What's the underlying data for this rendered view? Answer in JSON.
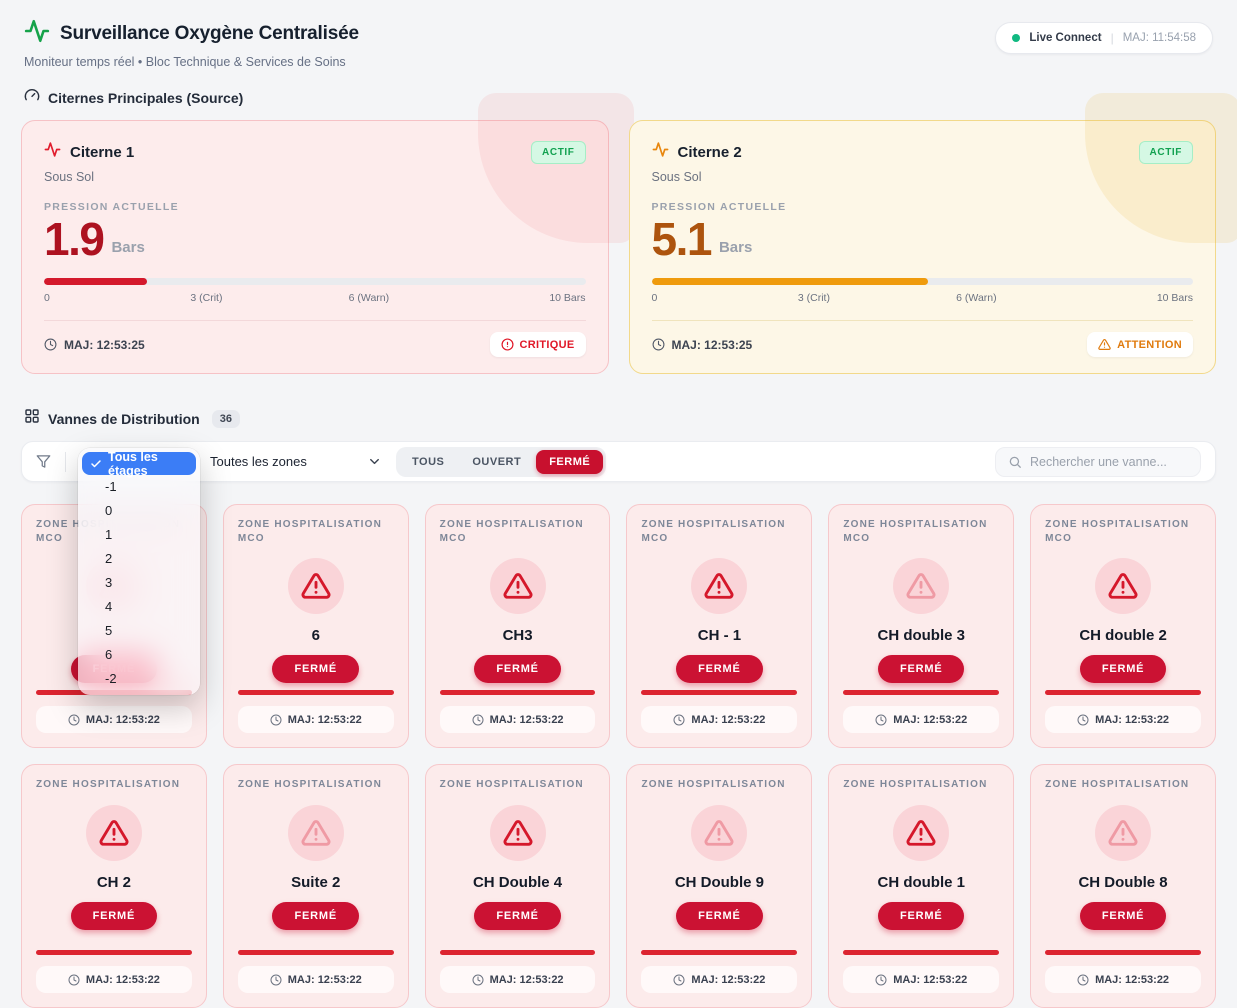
{
  "colors": {
    "critical_red": "#d4192c",
    "closed_red": "#cb1233",
    "warn_orange": "#ef9b0d",
    "live_green": "#10b981",
    "select_blue": "#3b7df6"
  },
  "header": {
    "title": "Surveillance Oxygène Centralisée",
    "subtitle": "Moniteur temps réel • Bloc Technique & Services de Soins",
    "live_label": "Live Connect",
    "maj": "MAJ: 11:54:58"
  },
  "tanks_section": {
    "title": "Citernes Principales (Source)"
  },
  "pressure_scale": {
    "zero": "0",
    "crit": "3 (Crit)",
    "warn": "6 (Warn)",
    "max": "10 Bars"
  },
  "tanks": [
    {
      "name": "Citerne 1",
      "location": "Sous Sol",
      "status": "ACTIF",
      "pressure_label": "PRESSION ACTUELLE",
      "value": "1.9",
      "unit": "Bars",
      "percent": 19,
      "maj": "MAJ: 12:53:25",
      "alert": "CRITIQUE"
    },
    {
      "name": "Citerne 2",
      "location": "Sous Sol",
      "status": "ACTIF",
      "pressure_label": "PRESSION ACTUELLE",
      "value": "5.1",
      "unit": "Bars",
      "percent": 51,
      "maj": "MAJ: 12:53:25",
      "alert": "ATTENTION"
    }
  ],
  "valves_section": {
    "title": "Vannes de Distribution",
    "count": "36"
  },
  "filters": {
    "floor_selected": "Tous les étages",
    "floor_options": [
      "-1",
      "0",
      "1",
      "2",
      "3",
      "4",
      "5",
      "6",
      "-2"
    ],
    "zone_selected": "Toutes les zones",
    "status_buttons": [
      "TOUS",
      "OUVERT",
      "FERMÉ"
    ],
    "active_status": "FERMÉ",
    "search_placeholder": "Rechercher une vanne..."
  },
  "valves": [
    {
      "zone": "ZONE HOSPITALISATION MCO",
      "name": "",
      "status": "FERMÉ",
      "maj": "MAJ: 12:53:22",
      "faded": true
    },
    {
      "zone": "ZONE HOSPITALISATION MCO",
      "name": "6",
      "status": "FERMÉ",
      "maj": "MAJ: 12:53:22",
      "faded": false
    },
    {
      "zone": "ZONE HOSPITALISATION MCO",
      "name": "CH3",
      "status": "FERMÉ",
      "maj": "MAJ: 12:53:22",
      "faded": false
    },
    {
      "zone": "ZONE HOSPITALISATION MCO",
      "name": "CH - 1",
      "status": "FERMÉ",
      "maj": "MAJ: 12:53:22",
      "faded": false
    },
    {
      "zone": "ZONE HOSPITALISATION MCO",
      "name": "CH double 3",
      "status": "FERMÉ",
      "maj": "MAJ: 12:53:22",
      "faded": true
    },
    {
      "zone": "ZONE HOSPITALISATION MCO",
      "name": "CH double 2",
      "status": "FERMÉ",
      "maj": "MAJ: 12:53:22",
      "faded": false
    },
    {
      "zone": "ZONE HOSPITALISATION",
      "name": "CH 2",
      "status": "FERMÉ",
      "maj": "MAJ: 12:53:22",
      "faded": false
    },
    {
      "zone": "ZONE HOSPITALISATION",
      "name": "Suite 2",
      "status": "FERMÉ",
      "maj": "MAJ: 12:53:22",
      "faded": true
    },
    {
      "zone": "ZONE HOSPITALISATION",
      "name": "CH Double 4",
      "status": "FERMÉ",
      "maj": "MAJ: 12:53:22",
      "faded": false
    },
    {
      "zone": "ZONE HOSPITALISATION",
      "name": "CH Double 9",
      "status": "FERMÉ",
      "maj": "MAJ: 12:53:22",
      "faded": true
    },
    {
      "zone": "ZONE HOSPITALISATION",
      "name": "CH double 1",
      "status": "FERMÉ",
      "maj": "MAJ: 12:53:22",
      "faded": false
    },
    {
      "zone": "ZONE HOSPITALISATION",
      "name": "CH Double 8",
      "status": "FERMÉ",
      "maj": "MAJ: 12:53:22",
      "faded": true
    }
  ]
}
